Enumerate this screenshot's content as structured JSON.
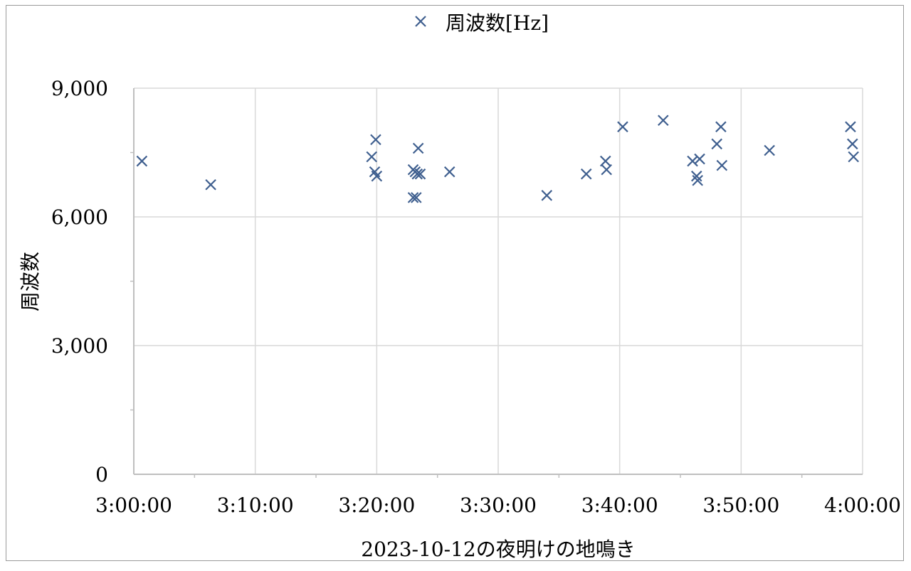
{
  "chart_data": {
    "type": "scatter",
    "legend": {
      "position": "top",
      "entries": [
        "周波数[Hz]"
      ]
    },
    "series": [
      {
        "name": "周波数[Hz]",
        "marker": "x",
        "color": "#3f5f8f",
        "points": [
          {
            "x": "3:00:40",
            "y": 7300
          },
          {
            "x": "3:06:20",
            "y": 6750
          },
          {
            "x": "3:19:35",
            "y": 7400
          },
          {
            "x": "3:19:50",
            "y": 7050
          },
          {
            "x": "3:20:00",
            "y": 6950
          },
          {
            "x": "3:19:55",
            "y": 7800
          },
          {
            "x": "3:23:00",
            "y": 7100
          },
          {
            "x": "3:23:10",
            "y": 7050
          },
          {
            "x": "3:23:20",
            "y": 7000
          },
          {
            "x": "3:23:35",
            "y": 7000
          },
          {
            "x": "3:23:25",
            "y": 7600
          },
          {
            "x": "3:23:00",
            "y": 6450
          },
          {
            "x": "3:23:15",
            "y": 6450
          },
          {
            "x": "3:26:00",
            "y": 7050
          },
          {
            "x": "3:34:00",
            "y": 6500
          },
          {
            "x": "3:37:15",
            "y": 7000
          },
          {
            "x": "3:38:50",
            "y": 7300
          },
          {
            "x": "3:38:55",
            "y": 7100
          },
          {
            "x": "3:40:15",
            "y": 8100
          },
          {
            "x": "3:43:35",
            "y": 8250
          },
          {
            "x": "3:46:00",
            "y": 7300
          },
          {
            "x": "3:46:20",
            "y": 6950
          },
          {
            "x": "3:46:25",
            "y": 6850
          },
          {
            "x": "3:46:35",
            "y": 7350
          },
          {
            "x": "3:48:00",
            "y": 7700
          },
          {
            "x": "3:48:20",
            "y": 8100
          },
          {
            "x": "3:48:25",
            "y": 7200
          },
          {
            "x": "3:52:20",
            "y": 7550
          },
          {
            "x": "3:59:00",
            "y": 8100
          },
          {
            "x": "3:59:10",
            "y": 7700
          },
          {
            "x": "3:59:15",
            "y": 7400
          }
        ]
      }
    ],
    "xlabel": "2023-10-12の夜明けの地鳴き",
    "ylabel": "周波数",
    "x_ticks": [
      "3:00:00",
      "3:10:00",
      "3:20:00",
      "3:30:00",
      "3:40:00",
      "3:50:00",
      "4:00:00"
    ],
    "y_ticks": [
      "0",
      "3,000",
      "6,000",
      "9,000"
    ],
    "y_tick_values": [
      0,
      3000,
      6000,
      9000
    ],
    "xlim": [
      "3:00:00",
      "4:00:00"
    ],
    "ylim": [
      0,
      9000
    ],
    "grid": true,
    "grid_color": "#d9d9d9",
    "axis_color": "#bfbfbf"
  }
}
